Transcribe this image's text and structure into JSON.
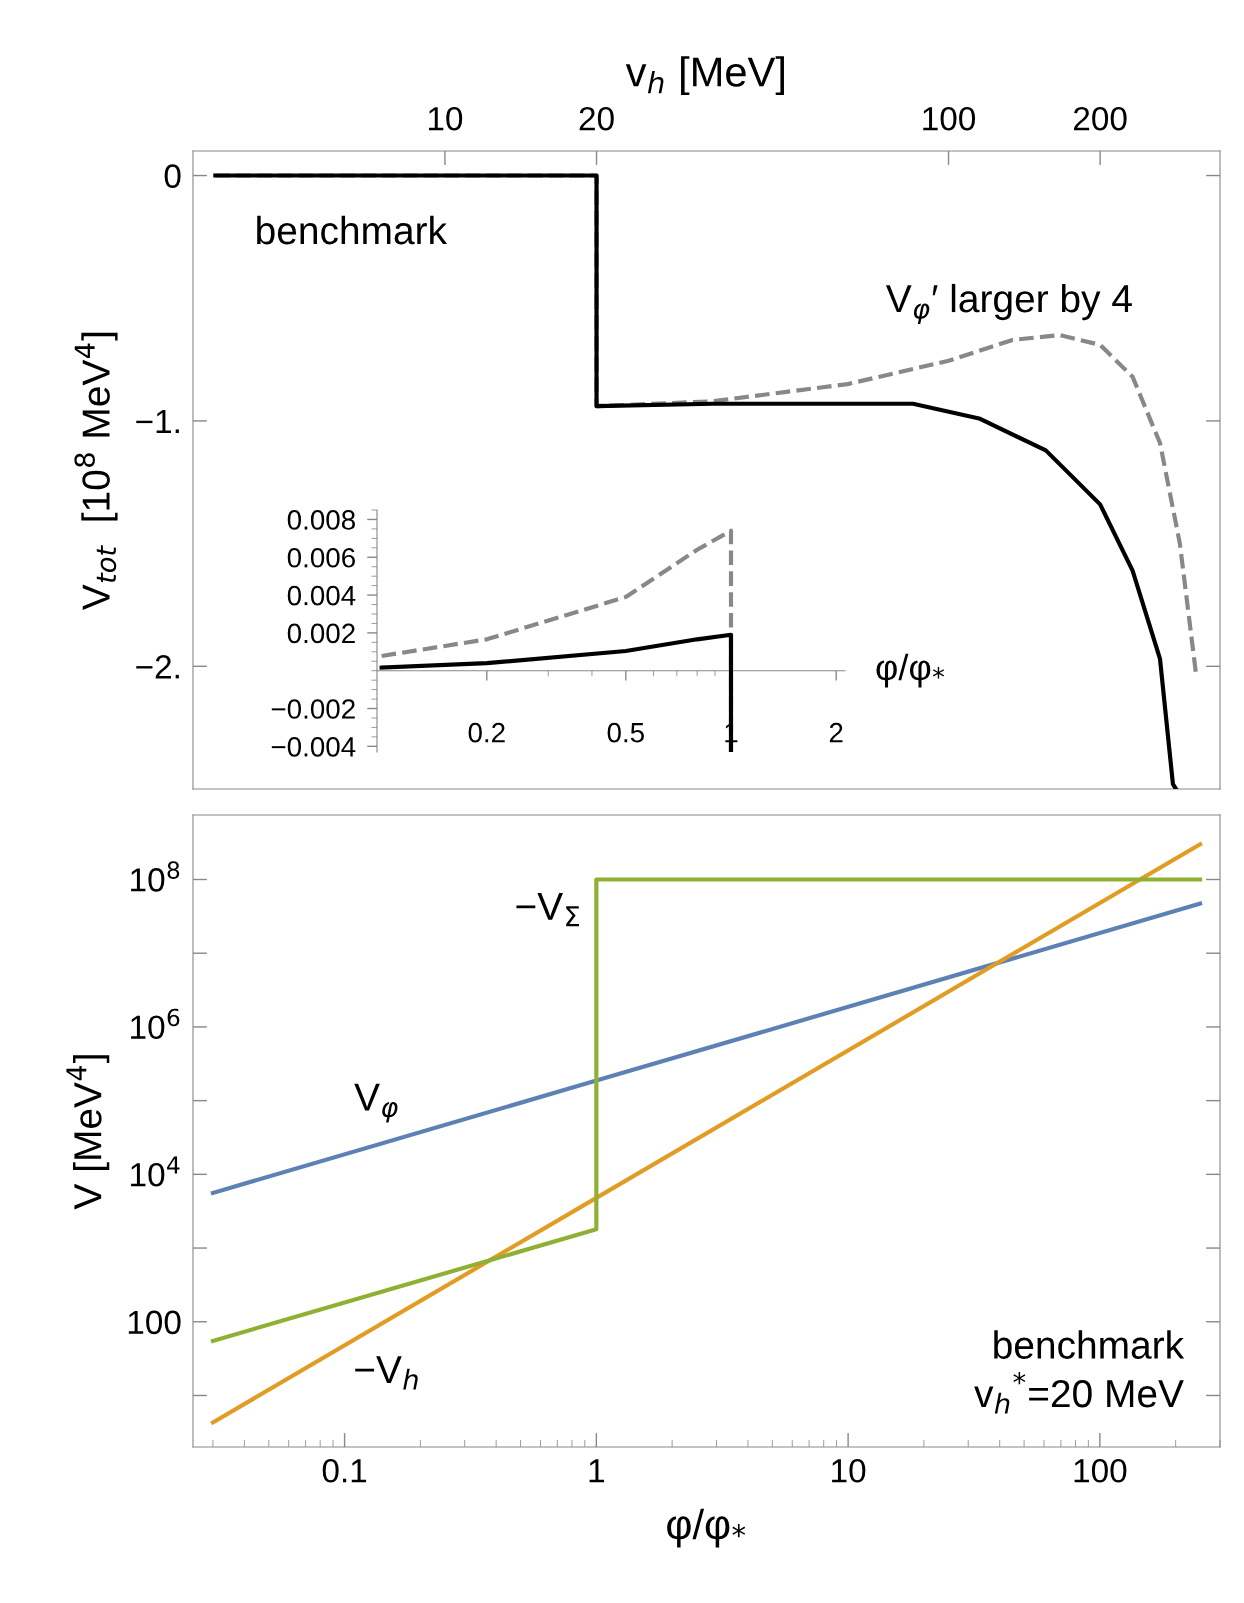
{
  "chart_data": [
    {
      "type": "line",
      "ylabel": "V$_{tot}$  [10$^{8}$ MeV$^{4}$]",
      "xlabel": "v$_{h}$ [MeV]",
      "log": "x",
      "xlim": [
        3.16,
        346
      ],
      "ylim": [
        -2.5,
        0.1
      ],
      "xticks": [
        10,
        20,
        100,
        200
      ],
      "yticks": [
        0,
        {
          "value": -1,
          "label": "−1."
        },
        {
          "value": -2,
          "label": "−2."
        }
      ],
      "grid": false,
      "series": [
        {
          "color": "#888888",
          "line_style": "dashed",
          "x": [
            3.5,
            20,
            20,
            34,
            63,
            100,
            134,
            166,
            200,
            232,
            263,
            288,
            310
          ],
          "values": [
            0,
            0,
            -0.94,
            -0.92,
            -0.85,
            -0.755,
            -0.67,
            -0.65,
            -0.69,
            -0.82,
            -1.09,
            -1.5,
            -2.03
          ]
        },
        {
          "color": "#000000",
          "line_style": "solid",
          "x": [
            3.5,
            20,
            20,
            34,
            63,
            85,
            115,
            156,
            200,
            232,
            263,
            279,
            283
          ],
          "values": [
            0,
            0,
            -0.94,
            -0.93,
            -0.93,
            -0.93,
            -0.99,
            -1.12,
            -1.34,
            -1.61,
            -1.97,
            -2.48,
            -2.5
          ]
        }
      ],
      "annotations": [
        "benchmark",
        "V$_{φ}$′ larger by 4"
      ]
    },
    {
      "type": "line",
      "xlabel": "φ/φ$_{*}$",
      "log": "x",
      "xlim": [
        0.097,
        2.12
      ],
      "ylim": [
        -0.0043,
        0.0085
      ],
      "xticks": [
        0.2,
        0.5,
        1,
        2
      ],
      "yticks": [
        {
          "value": 0.008,
          "label": "0.008"
        },
        {
          "value": 0.006,
          "label": "0.006"
        },
        {
          "value": 0.004,
          "label": "0.004"
        },
        {
          "value": 0.002,
          "label": "0.002"
        },
        {
          "value": -0.002,
          "label": "−0.002"
        },
        {
          "value": -0.004,
          "label": "−0.004"
        }
      ],
      "grid": false,
      "series": [
        {
          "color": "#888888",
          "line_style": "dashed",
          "x": [
            0.1,
            0.2,
            0.5,
            0.8,
            1,
            1
          ],
          "values": [
            0.00078,
            0.00166,
            0.0039,
            0.0064,
            0.0074,
            -0.0043
          ]
        },
        {
          "color": "#000000",
          "line_style": "solid",
          "x": [
            0.1,
            0.2,
            0.5,
            0.8,
            1,
            1
          ],
          "values": [
            0.00016,
            0.0004,
            0.00104,
            0.00166,
            0.0019,
            -0.0043
          ]
        }
      ]
    },
    {
      "type": "line",
      "xlabel": "φ/φ$_{*}$",
      "ylabel": "V [MeV$^{4}$]",
      "log": "xy",
      "xlim": [
        0.025,
        300
      ],
      "ylim": [
        2,
        750000000.0
      ],
      "xticks": [
        0.1,
        1,
        10,
        100
      ],
      "yticks": [
        {
          "value": 10,
          "label": null
        },
        100,
        {
          "value": 1000,
          "label": null
        },
        {
          "value": 10000,
          "label": "10$^{4}$"
        },
        {
          "value": 100000,
          "label": null
        },
        {
          "value": 1000000,
          "label": "10$^{6}$"
        },
        {
          "value": 10000000,
          "label": null
        },
        {
          "value": 100000000,
          "label": "10$^{8}$"
        }
      ],
      "grid": false,
      "series": [
        {
          "color": "#5e81b5",
          "line_style": "solid",
          "x": [
            0.03,
            1,
            250
          ],
          "values": [
            5600,
            187000,
            47000000
          ]
        },
        {
          "color": "#e19c24",
          "line_style": "solid",
          "x": [
            0.03,
            1,
            250
          ],
          "values": [
            4.3,
            4800,
            300000000
          ]
        },
        {
          "color": "#8fb032",
          "line_style": "solid",
          "x": [
            0.03,
            1,
            1,
            250
          ],
          "values": [
            55,
            1800,
            100000000,
            100000000
          ]
        }
      ],
      "annotations": [
        "−V$_{Σ}$",
        "V$_{φ}$",
        "−V$_{h}$",
        "benchmark\nv$_{h}$$^{*}$=20 MeV"
      ]
    }
  ]
}
